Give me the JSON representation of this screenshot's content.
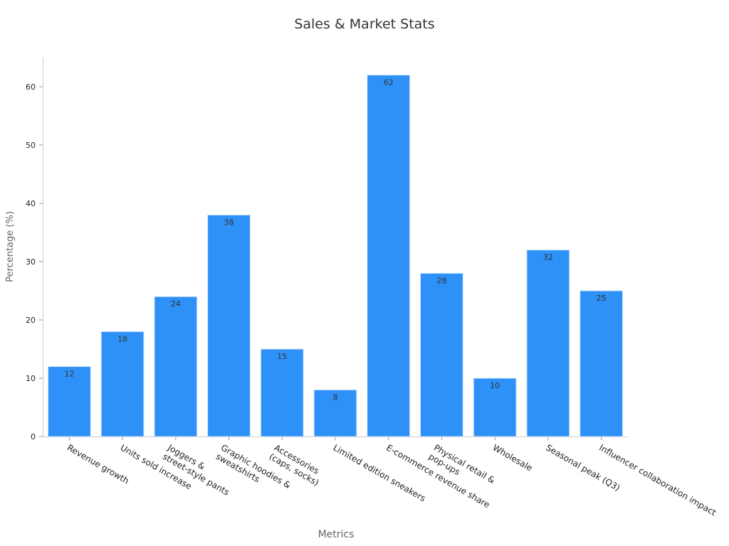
{
  "chart_data": {
    "type": "bar",
    "title": "Sales & Market Stats",
    "x_label": "Metrics",
    "y_label": "Percentage (%)",
    "categories": [
      "Revenue growth",
      "Units sold increase",
      "Joggers &\nstreet-style pants",
      "Graphic hoodies &\nsweatshirts",
      "Accessories\n(caps, socks)",
      "Limited edition sneakers",
      "E-commerce revenue share",
      "Physical retail &\npop-ups",
      "Wholesale",
      "Seasonal peak (Q3)",
      "Influencer collaboration impact"
    ],
    "values": [
      12,
      18,
      24,
      38,
      15,
      8,
      62,
      28,
      10,
      32,
      25
    ],
    "color": "#2d91f7",
    "ylim": [
      0,
      65
    ],
    "yticks": [
      0,
      10,
      20,
      30,
      40,
      50,
      60
    ],
    "grid": false
  }
}
